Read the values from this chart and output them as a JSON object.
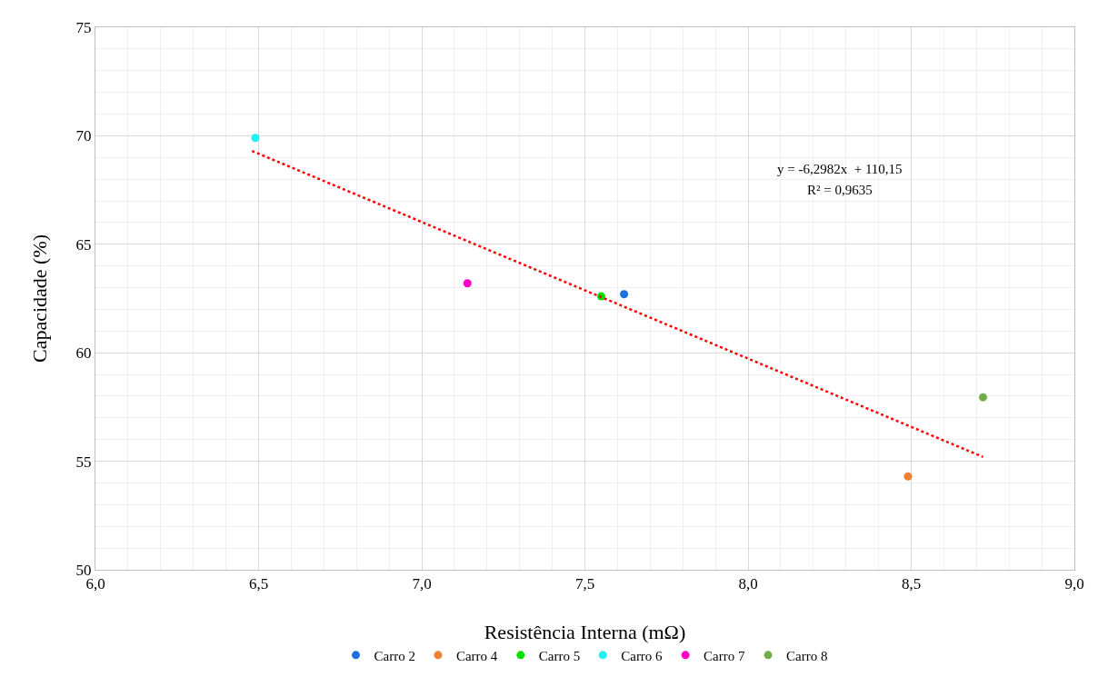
{
  "chart_data": {
    "type": "scatter",
    "xlabel": "Resistência Interna (mΩ)",
    "ylabel": "Capacidade (%)",
    "xlim": [
      6,
      9
    ],
    "xticks": [
      {
        "value": 6,
        "label": "6,0"
      },
      {
        "value": 6.5,
        "label": "6,5"
      },
      {
        "value": 7,
        "label": "7,0"
      },
      {
        "value": 7.5,
        "label": "7,5"
      },
      {
        "value": 8,
        "label": "8,0"
      },
      {
        "value": 8.5,
        "label": "8,5"
      },
      {
        "value": 9,
        "label": "9,0"
      }
    ],
    "ylim": [
      50,
      75
    ],
    "yticks": [
      50,
      55,
      60,
      65,
      70,
      75
    ],
    "grid": true,
    "legend": "bottom",
    "marker": "circle",
    "annotations": [
      "y = -6,2982x  + 110,15",
      "R² = 0,9635"
    ],
    "series": [
      {
        "name": "Carro 2",
        "color": "#1f6fe0",
        "x": [
          7.62
        ],
        "values": [
          62.7
        ]
      },
      {
        "name": "Carro 4",
        "color": "#f08030",
        "x": [
          8.49
        ],
        "values": [
          54.3
        ]
      },
      {
        "name": "Carro 5",
        "color": "#00e000",
        "x": [
          7.55
        ],
        "values": [
          62.6
        ]
      },
      {
        "name": "Carro 6",
        "color": "#1ff0f0",
        "x": [
          6.49
        ],
        "values": [
          69.9
        ]
      },
      {
        "name": "Carro 7",
        "color": "#ff00c8",
        "x": [
          7.14
        ],
        "values": [
          63.2
        ]
      },
      {
        "name": "Carro 8",
        "color": "#70ad47",
        "x": [
          8.72
        ],
        "values": [
          57.95
        ]
      },
      {
        "type": "line",
        "color": "#ff0000",
        "line_style": "dotted",
        "marker": "none",
        "x": [
          6.48,
          8.72
        ],
        "values": [
          69.3,
          55.2
        ]
      }
    ]
  }
}
